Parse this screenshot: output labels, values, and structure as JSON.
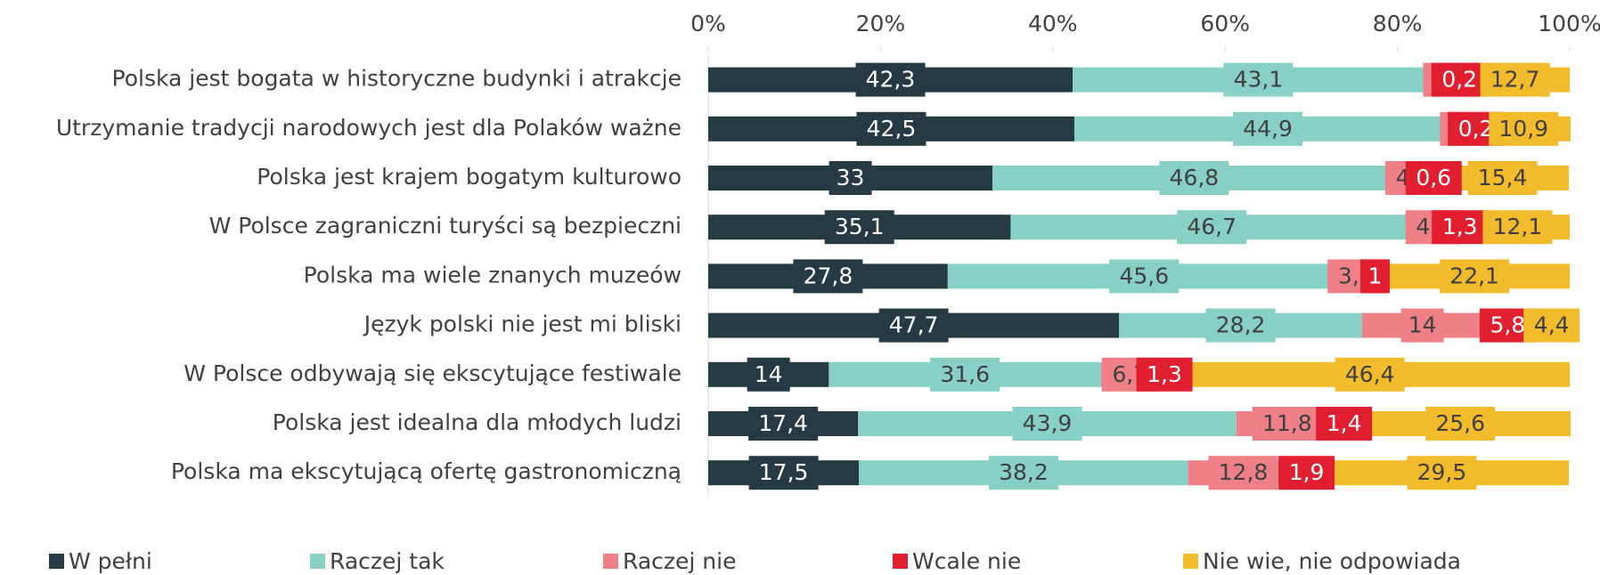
{
  "chart_data": {
    "type": "stacked_bar_horizontal",
    "categories": [
      "Polska jest bogata w historyczne budynki i atrakcje",
      "Utrzymanie tradycji narodowych jest dla Polaków ważne",
      "Polska jest krajem bogatym kulturowo",
      "W Polsce zagraniczni turyści są bezpieczni",
      "Polska ma wiele znanych muzeów",
      "Język polski nie jest mi bliski",
      "W Polsce odbywają się ekscytujące festiwale",
      "Polska jest idealna dla młodych ludzi",
      "Polska ma ekscytującą ofertę gastronomiczną"
    ],
    "series": [
      {
        "name": "W pełni",
        "color": "#263a44",
        "values": [
          42.3,
          42.5,
          33,
          35.1,
          27.8,
          47.7,
          14,
          17.4,
          17.5
        ],
        "value_labels": [
          "42,3",
          "42,5",
          "33",
          "35,1",
          "27,8",
          "47,7",
          "14",
          "17,4",
          "17,5"
        ]
      },
      {
        "name": "Raczej tak",
        "color": "#88d0c6",
        "values": [
          43.1,
          44.9,
          46.8,
          46.7,
          45.6,
          28.2,
          31.6,
          43.9,
          38.2
        ],
        "value_labels": [
          "43,1",
          "44,9",
          "46,8",
          "46,7",
          "45,6",
          "28,2",
          "31,6",
          "43,9",
          "38,2"
        ]
      },
      {
        "name": "Raczej nie",
        "color": "#ef8088",
        "values": [
          1.7,
          1.6,
          4.1,
          4.8,
          3.5,
          14,
          6.7,
          11.8,
          12.8
        ],
        "value_labels": [
          "1,7",
          "1,6",
          "4,1",
          "4,8",
          "3,5",
          "14",
          "6,7",
          "11,8",
          "12,8"
        ]
      },
      {
        "name": "Wcale nie",
        "color": "#e21f30",
        "values": [
          0.2,
          0.2,
          0.6,
          1.3,
          1,
          5.8,
          1.3,
          1.4,
          1.9
        ],
        "value_labels": [
          "0,2",
          "0,2",
          "0,6",
          "1,3",
          "1",
          "5,8",
          "1,3",
          "1,4",
          "1,9"
        ]
      },
      {
        "name": "Nie wie, nie odpowiada",
        "color": "#f2bb2b",
        "values": [
          12.7,
          10.9,
          15.4,
          12.1,
          22.1,
          4.4,
          46.4,
          25.6,
          29.5
        ],
        "value_labels": [
          "12,7",
          "10,9",
          "15,4",
          "12,1",
          "22,1",
          "4,4",
          "46,4",
          "25,6",
          "29,5"
        ]
      }
    ],
    "xlim": [
      0,
      100
    ],
    "xticks": [
      {
        "value": 0,
        "label": "0%"
      },
      {
        "value": 20,
        "label": "20%"
      },
      {
        "value": 40,
        "label": "40%"
      },
      {
        "value": 60,
        "label": "60%"
      },
      {
        "value": 80,
        "label": "80%"
      },
      {
        "value": 100,
        "label": "100%"
      }
    ],
    "legend": "bottom"
  }
}
